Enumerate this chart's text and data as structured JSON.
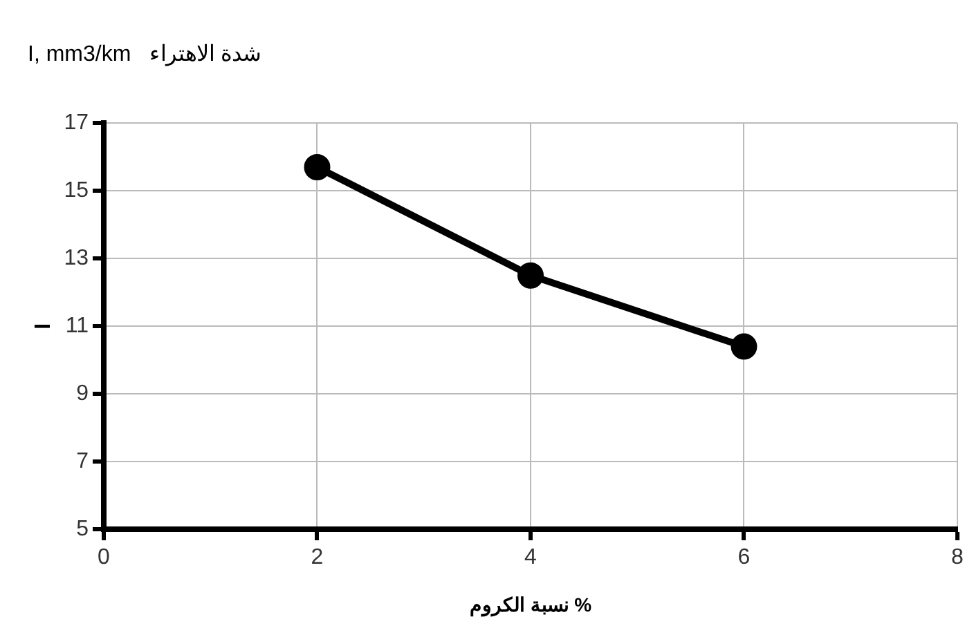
{
  "chart_data": {
    "type": "line",
    "title": "I, mm3/km   شدة الاهتراء",
    "xlabel": "نسبة الكروم %",
    "ylabel": "I",
    "x": [
      2,
      4,
      6
    ],
    "series": [
      {
        "color": "#000000",
        "values": [
          15.7,
          12.5,
          10.4
        ]
      }
    ],
    "xlim": [
      0,
      8
    ],
    "xticks": [
      0,
      2,
      4,
      6,
      8
    ],
    "ylim": [
      5,
      17
    ],
    "yticks": [
      5,
      7,
      9,
      11,
      13,
      15,
      17
    ],
    "grid": true,
    "marker": "circle",
    "line_style": "solid",
    "legend": false
  }
}
